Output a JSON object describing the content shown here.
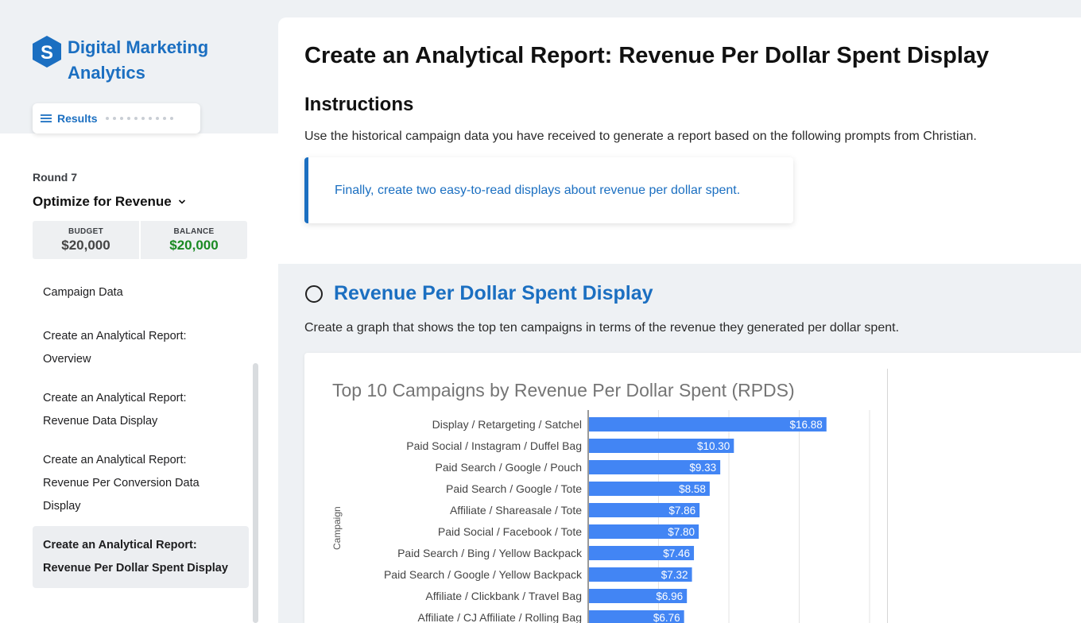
{
  "brand": {
    "title_line1": "Digital Marketing",
    "title_line2": "Analytics",
    "logo_letter": "S"
  },
  "results_pill": {
    "label": "Results"
  },
  "round": {
    "label": "Round 7",
    "title": "Optimize for Revenue"
  },
  "money": {
    "budget_label": "BUDGET",
    "budget_value": "$20,000",
    "balance_label": "BALANCE",
    "balance_value": "$20,000"
  },
  "nav": {
    "items": [
      {
        "line1": "Campaign Data",
        "line2": "",
        "line3": ""
      },
      {
        "line1": "Create an Analytical Report:",
        "line2": "Overview",
        "line3": ""
      },
      {
        "line1": "Create an Analytical Report:",
        "line2": "Revenue Data Display",
        "line3": ""
      },
      {
        "line1": "Create an Analytical Report:",
        "line2": "Revenue Per Conversion Data",
        "line3": "Display"
      },
      {
        "line1": "Create an Analytical Report:",
        "line2": "Revenue Per Dollar Spent Display",
        "line3": ""
      }
    ]
  },
  "main": {
    "title": "Create an Analytical Report: Revenue Per Dollar Spent Display",
    "instructions_heading": "Instructions",
    "instructions_text": "Use the historical campaign data you have received to generate a report based on the following prompts from Christian.",
    "callout": "Finally, create two easy-to-read displays about revenue per dollar spent.",
    "section_title": "Revenue Per Dollar Spent Display",
    "section_desc": "Create a graph that shows the top ten campaigns in terms of the revenue they generated per dollar spent."
  },
  "colors": {
    "accent": "#1b6fc1",
    "bar": "#4285f4",
    "balance_green": "#1a8a22"
  },
  "chart_data": {
    "type": "bar",
    "orientation": "horizontal",
    "title": "Top 10 Campaigns by Revenue Per Dollar Spent (RPDS)",
    "ylabel": "Campaign",
    "categories": [
      "Display / Retargeting / Satchel",
      "Paid Social / Instagram / Duffel Bag",
      "Paid Search / Google / Pouch",
      "Paid Search / Google / Tote",
      "Affiliate / Shareasale / Tote",
      "Paid Social / Facebook / Tote",
      "Paid Search / Bing / Yellow Backpack",
      "Paid Search / Google / Yellow Backpack",
      "Affiliate / Clickbank / Travel Bag",
      "Affiliate / CJ Affiliate / Rolling Bag"
    ],
    "values": [
      16.88,
      10.3,
      9.33,
      8.58,
      7.86,
      7.8,
      7.46,
      7.32,
      6.96,
      6.76
    ],
    "data_labels": [
      "$16.88",
      "$10.30",
      "$9.33",
      "$8.58",
      "$7.86",
      "$7.80",
      "$7.46",
      "$7.32",
      "$6.96",
      "$6.76"
    ],
    "xlim": [
      0,
      20
    ],
    "grid": true
  }
}
